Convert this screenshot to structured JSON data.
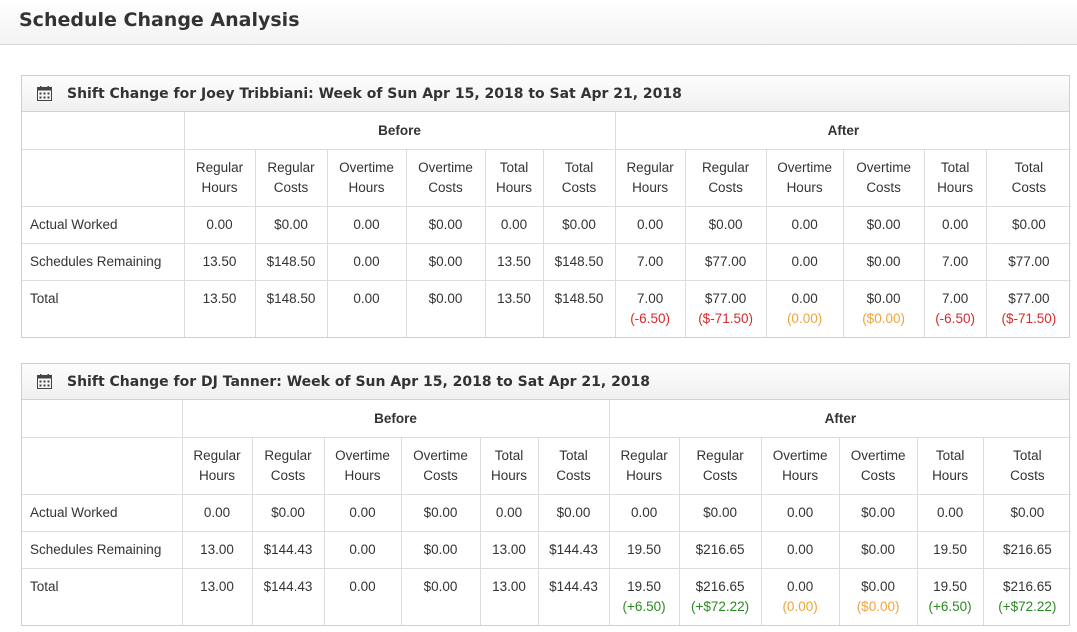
{
  "page": {
    "title": "Schedule Change Analysis"
  },
  "colors": {
    "negative": "#d9292a",
    "neutral": "#f0a43b",
    "positive": "#2a8a22"
  },
  "groups": {
    "before": "Before",
    "after": "After"
  },
  "columns": [
    {
      "l1": "Regular",
      "l2": "Hours"
    },
    {
      "l1": "Regular",
      "l2": "Costs"
    },
    {
      "l1": "Overtime",
      "l2": "Hours"
    },
    {
      "l1": "Overtime",
      "l2": "Costs"
    },
    {
      "l1": "Total",
      "l2": "Hours"
    },
    {
      "l1": "Total",
      "l2": "Costs"
    }
  ],
  "row_labels": {
    "actual": "Actual Worked",
    "remaining": "Schedules Remaining",
    "total": "Total"
  },
  "panels": [
    {
      "title": "Shift Change for Joey Tribbiani: Week of Sun Apr 15, 2018 to Sat Apr 21, 2018",
      "actual": [
        "0.00",
        "$0.00",
        "0.00",
        "$0.00",
        "0.00",
        "$0.00",
        "0.00",
        "$0.00",
        "0.00",
        "$0.00",
        "0.00",
        "$0.00"
      ],
      "remaining": [
        "13.50",
        "$148.50",
        "0.00",
        "$0.00",
        "13.50",
        "$148.50",
        "7.00",
        "$77.00",
        "0.00",
        "$0.00",
        "7.00",
        "$77.00"
      ],
      "total": [
        "13.50",
        "$148.50",
        "0.00",
        "$0.00",
        "13.50",
        "$148.50",
        "7.00",
        "$77.00",
        "0.00",
        "$0.00",
        "7.00",
        "$77.00"
      ],
      "diffs": [
        "(-6.50)",
        "($-71.50)",
        "(0.00)",
        "($0.00)",
        "(-6.50)",
        "($-71.50)"
      ]
    },
    {
      "title": "Shift Change for DJ Tanner: Week of Sun Apr 15, 2018 to Sat Apr 21, 2018",
      "actual": [
        "0.00",
        "$0.00",
        "0.00",
        "$0.00",
        "0.00",
        "$0.00",
        "0.00",
        "$0.00",
        "0.00",
        "$0.00",
        "0.00",
        "$0.00"
      ],
      "remaining": [
        "13.00",
        "$144.43",
        "0.00",
        "$0.00",
        "13.00",
        "$144.43",
        "19.50",
        "$216.65",
        "0.00",
        "$0.00",
        "19.50",
        "$216.65"
      ],
      "total": [
        "13.00",
        "$144.43",
        "0.00",
        "$0.00",
        "13.00",
        "$144.43",
        "19.50",
        "$216.65",
        "0.00",
        "$0.00",
        "19.50",
        "$216.65"
      ],
      "diffs": [
        "(+6.50)",
        "(+$72.22)",
        "(0.00)",
        "($0.00)",
        "(+6.50)",
        "(+$72.22)"
      ]
    }
  ]
}
